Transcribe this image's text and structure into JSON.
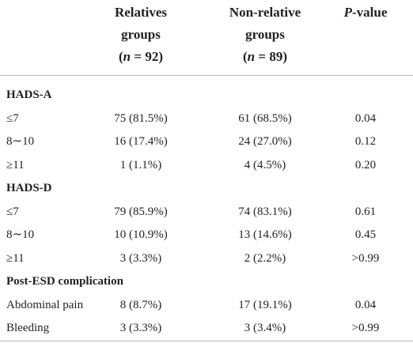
{
  "table": {
    "header": [
      {
        "lines": [
          [
            {
              "text": "Relatives"
            }
          ],
          [
            {
              "text": "groups"
            }
          ],
          [
            {
              "text": "("
            },
            {
              "text": "n",
              "italic": true
            },
            {
              "text": " = 92)"
            }
          ]
        ]
      },
      {
        "lines": [
          [
            {
              "text": "Non-relative"
            }
          ],
          [
            {
              "text": "groups"
            }
          ],
          [
            {
              "text": "("
            },
            {
              "text": "n",
              "italic": true
            },
            {
              "text": " = 89)"
            }
          ]
        ]
      },
      {
        "lines": [
          [
            {
              "text": "P",
              "italic": true
            },
            {
              "text": "-value"
            }
          ]
        ]
      }
    ],
    "sections": [
      {
        "title": "HADS-A",
        "rows": [
          [
            "≤7",
            "75 (81.5%)",
            "61 (68.5%)",
            "0.04"
          ],
          [
            "8∼10",
            "16 (17.4%)",
            "24 (27.0%)",
            "0.12"
          ],
          [
            "≥11",
            "1 (1.1%)",
            "4 (4.5%)",
            "0.20"
          ]
        ]
      },
      {
        "title": "HADS-D",
        "rows": [
          [
            "≤7",
            "79 (85.9%)",
            "74 (83.1%)",
            "0.61"
          ],
          [
            "8∼10",
            "10 (10.9%)",
            "13 (14.6%)",
            "0.45"
          ],
          [
            "≥11",
            "3 (3.3%)",
            "2 (2.2%)",
            ">0.99"
          ]
        ]
      },
      {
        "title": "Post-ESD complication",
        "rows": [
          [
            "Abdominal pain",
            "8 (8.7%)",
            "17 (19.1%)",
            "0.04"
          ],
          [
            "Bleeding",
            "3 (3.3%)",
            "3 (3.4%)",
            ">0.99"
          ]
        ]
      }
    ]
  }
}
